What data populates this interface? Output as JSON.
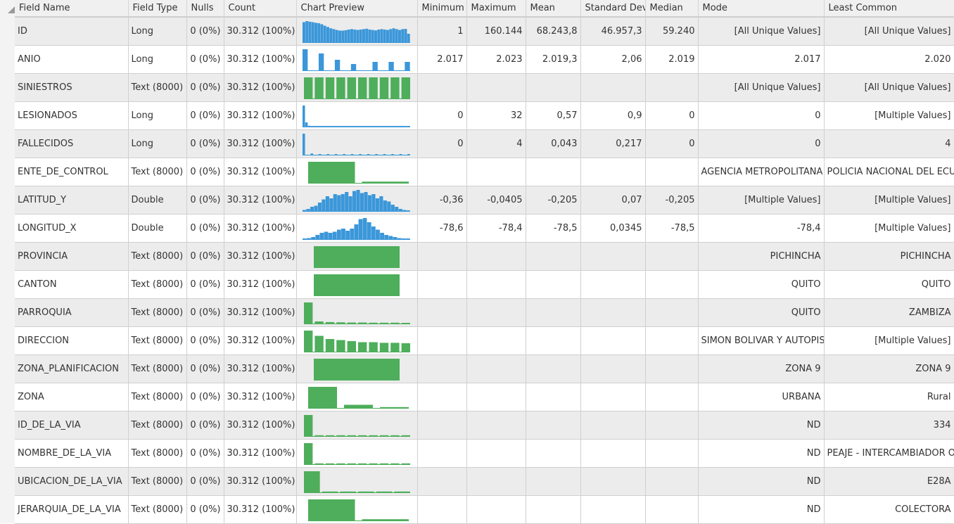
{
  "columns": {
    "field_name": "Field Name",
    "field_type": "Field Type",
    "nulls": "Nulls",
    "count": "Count",
    "chart_preview": "Chart Preview",
    "minimum": "Minimum",
    "maximum": "Maximum",
    "mean": "Mean",
    "std_dev": "Standard Dev",
    "median": "Median",
    "mode": "Mode",
    "least_common": "Least Common"
  },
  "colors": {
    "numeric_bar": "#3b97d9",
    "text_bar": "#4eae5b"
  },
  "rows": [
    {
      "name": "ID",
      "type": "Long",
      "nulls": "0 (0%)",
      "count": "30.312 (100%)",
      "min": "1",
      "max": "160.144",
      "mean": "68.243,8",
      "std": "46.957,3",
      "median": "59.240",
      "mode": "[All Unique Values]",
      "least": "[All Unique Values]",
      "chart": {
        "kind": "hist",
        "bars": [
          0.95,
          1,
          0.97,
          0.95,
          0.92,
          0.9,
          0.85,
          0.78,
          0.72,
          0.66,
          0.62,
          0.58,
          0.55,
          0.55,
          0.57,
          0.6,
          0.62,
          0.6,
          0.58,
          0.6,
          0.62,
          0.64,
          0.6,
          0.58,
          0.56,
          0.6,
          0.62,
          0.6,
          0.58,
          0.62,
          0.66,
          0.62,
          0.58,
          0.62,
          0.63,
          0.4
        ]
      }
    },
    {
      "name": "ANIO",
      "type": "Long",
      "nulls": "0 (0%)",
      "count": "30.312 (100%)",
      "min": "2.017",
      "max": "2.023",
      "mean": "2.019,3",
      "std": "2,06",
      "median": "2.019",
      "mode": "2.017",
      "least": "2.020",
      "chart": {
        "kind": "hist",
        "bars": [
          1,
          0,
          0,
          0.8,
          0,
          0,
          0.5,
          0,
          0,
          0.3,
          0,
          0,
          0,
          0.4,
          0,
          0,
          0.4,
          0,
          0,
          0.4
        ]
      }
    },
    {
      "name": "SINIESTROS",
      "type": "Text (8000)",
      "nulls": "0 (0%)",
      "count": "30.312 (100%)",
      "min": "",
      "max": "",
      "mean": "",
      "std": "",
      "median": "",
      "mode": "[All Unique Values]",
      "least": "[All Unique Values]",
      "chart": {
        "kind": "cat",
        "bars": [
          1,
          1,
          1,
          1,
          1,
          1,
          1,
          1,
          1,
          1
        ]
      }
    },
    {
      "name": "LESIONADOS",
      "type": "Long",
      "nulls": "0 (0%)",
      "count": "30.312 (100%)",
      "min": "0",
      "max": "32",
      "mean": "0,57",
      "std": "0,9",
      "median": "0",
      "mode": "0",
      "least": "[Multiple Values]",
      "chart": {
        "kind": "hist",
        "bars": [
          1,
          0.2,
          0.04,
          0.02,
          0.02,
          0.02,
          0.02,
          0.02,
          0.02,
          0.02,
          0.02,
          0.02,
          0.02,
          0.02,
          0.02,
          0.02,
          0.02,
          0.02,
          0.02,
          0.02,
          0.02,
          0.02,
          0.02,
          0.02,
          0.02,
          0.02,
          0.02,
          0.02,
          0.02,
          0.02,
          0.02,
          0.02,
          0.02,
          0.02,
          0.02,
          0.02,
          0.02,
          0.02,
          0.02,
          0.02
        ]
      }
    },
    {
      "name": "FALLECIDOS",
      "type": "Long",
      "nulls": "0 (0%)",
      "count": "30.312 (100%)",
      "min": "0",
      "max": "4",
      "mean": "0,043",
      "std": "0,217",
      "median": "0",
      "mode": "0",
      "least": "4",
      "chart": {
        "kind": "hist",
        "bars": [
          1,
          0,
          0,
          0.06,
          0,
          0,
          0.03,
          0,
          0,
          0.03,
          0,
          0,
          0.03,
          0,
          0,
          0.03,
          0,
          0,
          0.03,
          0,
          0,
          0.03,
          0,
          0,
          0.03,
          0,
          0,
          0.03,
          0,
          0,
          0.03,
          0,
          0,
          0.03,
          0,
          0,
          0.03,
          0,
          0,
          0.03
        ]
      }
    },
    {
      "name": "ENTE_DE_CONTROL",
      "type": "Text (8000)",
      "nulls": "0 (0%)",
      "count": "30.312 (100%)",
      "min": "",
      "max": "",
      "mean": "",
      "std": "",
      "median": "",
      "mode": "AGENCIA METROPOLITANA DE",
      "least": "POLICIA NACIONAL DEL ECUADOR",
      "chart": {
        "kind": "cat",
        "bars": [
          1,
          0.06
        ]
      }
    },
    {
      "name": "LATITUD_Y",
      "type": "Double",
      "nulls": "0 (0%)",
      "count": "30.312 (100%)",
      "min": "-0,36",
      "max": "-0,0405",
      "mean": "-0,205",
      "std": "0,07",
      "median": "-0,205",
      "mode": "[Multiple Values]",
      "least": "[Multiple Values]",
      "chart": {
        "kind": "hist",
        "bars": [
          0.05,
          0.1,
          0.2,
          0.25,
          0.4,
          0.55,
          0.7,
          0.6,
          0.8,
          0.75,
          0.8,
          0.9,
          0.7,
          0.95,
          1,
          0.85,
          0.9,
          0.75,
          0.8,
          0.6,
          0.7,
          0.5,
          0.45,
          0.3,
          0.2,
          0.1,
          0.05,
          0.02
        ]
      }
    },
    {
      "name": "LONGITUD_X",
      "type": "Double",
      "nulls": "0 (0%)",
      "count": "30.312 (100%)",
      "min": "-78,6",
      "max": "-78,4",
      "mean": "-78,5",
      "std": "0,0345",
      "median": "-78,5",
      "mode": "-78,4",
      "least": "[Multiple Values]",
      "chart": {
        "kind": "hist",
        "bars": [
          0.02,
          0.05,
          0.1,
          0.2,
          0.3,
          0.35,
          0.3,
          0.35,
          0.45,
          0.5,
          0.4,
          0.5,
          0.7,
          0.95,
          1,
          0.8,
          0.6,
          0.45,
          0.3,
          0.2,
          0.15,
          0.1,
          0.05,
          0.03,
          0.02
        ]
      }
    },
    {
      "name": "PROVINCIA",
      "type": "Text (8000)",
      "nulls": "0 (0%)",
      "count": "30.312 (100%)",
      "min": "",
      "max": "",
      "mean": "",
      "std": "",
      "median": "",
      "mode": "PICHINCHA",
      "least": "PICHINCHA",
      "chart": {
        "kind": "single",
        "bars": [
          1
        ]
      }
    },
    {
      "name": "CANTON",
      "type": "Text (8000)",
      "nulls": "0 (0%)",
      "count": "30.312 (100%)",
      "min": "",
      "max": "",
      "mean": "",
      "std": "",
      "median": "",
      "mode": "QUITO",
      "least": "QUITO",
      "chart": {
        "kind": "single",
        "bars": [
          1
        ]
      }
    },
    {
      "name": "PARROQUIA",
      "type": "Text (8000)",
      "nulls": "0 (0%)",
      "count": "30.312 (100%)",
      "min": "",
      "max": "",
      "mean": "",
      "std": "",
      "median": "",
      "mode": "QUITO",
      "least": "ZAMBIZA",
      "chart": {
        "kind": "cat",
        "bars": [
          1,
          0.1,
          0.07,
          0.06,
          0.05,
          0.05,
          0.04,
          0.04,
          0.04,
          0.03
        ]
      }
    },
    {
      "name": "DIRECCION",
      "type": "Text (8000)",
      "nulls": "0 (0%)",
      "count": "30.312 (100%)",
      "min": "",
      "max": "",
      "mean": "",
      "std": "",
      "median": "",
      "mode": "SIMON BOLIVAR Y AUTOPISTA",
      "least": "[Multiple Values]",
      "chart": {
        "kind": "cat",
        "bars": [
          1,
          0.75,
          0.6,
          0.55,
          0.5,
          0.45,
          0.45,
          0.42,
          0.42,
          0.4
        ]
      }
    },
    {
      "name": "ZONA_PLANIFICACION",
      "type": "Text (8000)",
      "nulls": "0 (0%)",
      "count": "30.312 (100%)",
      "min": "",
      "max": "",
      "mean": "",
      "std": "",
      "median": "",
      "mode": "ZONA 9",
      "least": "ZONA 9",
      "chart": {
        "kind": "single",
        "bars": [
          1
        ]
      }
    },
    {
      "name": "ZONA",
      "type": "Text (8000)",
      "nulls": "0 (0%)",
      "count": "30.312 (100%)",
      "min": "",
      "max": "",
      "mean": "",
      "std": "",
      "median": "",
      "mode": "URBANA",
      "least": "Rural",
      "chart": {
        "kind": "cat",
        "bars": [
          1,
          0.15,
          0.04
        ]
      }
    },
    {
      "name": "ID_DE_LA_VIA",
      "type": "Text (8000)",
      "nulls": "0 (0%)",
      "count": "30.312 (100%)",
      "min": "",
      "max": "",
      "mean": "",
      "std": "",
      "median": "",
      "mode": "ND",
      "least": "334",
      "chart": {
        "kind": "cat",
        "bars": [
          1,
          0.04,
          0.04,
          0.04,
          0.04,
          0.04,
          0.04,
          0.04,
          0.04,
          0.04
        ]
      }
    },
    {
      "name": "NOMBRE_DE_LA_VIA",
      "type": "Text (8000)",
      "nulls": "0 (0%)",
      "count": "30.312 (100%)",
      "min": "",
      "max": "",
      "mean": "",
      "std": "",
      "median": "",
      "mode": "ND",
      "least": "PEAJE - INTERCAMBIADOR OYACOTO",
      "chart": {
        "kind": "cat",
        "bars": [
          1,
          0.04,
          0.04,
          0.04,
          0.04,
          0.04,
          0.04,
          0.04,
          0.04,
          0.04
        ]
      }
    },
    {
      "name": "UBICACION_DE_LA_VIA",
      "type": "Text (8000)",
      "nulls": "0 (0%)",
      "count": "30.312 (100%)",
      "min": "",
      "max": "",
      "mean": "",
      "std": "",
      "median": "",
      "mode": "ND",
      "least": "E28A",
      "chart": {
        "kind": "cat",
        "bars": [
          1,
          0.04,
          0.04,
          0.04,
          0.04,
          0.04
        ]
      }
    },
    {
      "name": "JERARQUIA_DE_LA_VIA",
      "type": "Text (8000)",
      "nulls": "0 (0%)",
      "count": "30.312 (100%)",
      "min": "",
      "max": "",
      "mean": "",
      "std": "",
      "median": "",
      "mode": "ND",
      "least": "COLECTORA",
      "chart": {
        "kind": "cat",
        "bars": [
          1,
          0.06
        ]
      }
    }
  ]
}
